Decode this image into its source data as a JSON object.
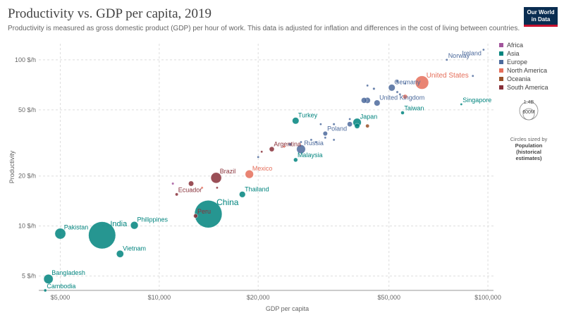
{
  "header": {
    "title": "Productivity vs. GDP per capita, 2019",
    "subtitle": "Productivity is measured as gross domestic product (GDP) per hour of work. This data is adjusted for inflation and differences in the cost of living between countries.",
    "logo_line1": "Our World",
    "logo_line2": "in Data"
  },
  "legend": {
    "items": [
      {
        "label": "Africa",
        "color": "#a2559c"
      },
      {
        "label": "Asia",
        "color": "#00847e"
      },
      {
        "label": "Europe",
        "color": "#4c6a9c"
      },
      {
        "label": "North America",
        "color": "#e56e5a"
      },
      {
        "label": "Oceania",
        "color": "#9a5129"
      },
      {
        "label": "South America",
        "color": "#883039"
      }
    ],
    "size_label_top": "1.4B",
    "size_label_bottom": "600M",
    "size_note": "Circles sized by",
    "size_var": "Population (historical estimates)"
  },
  "chart_data": {
    "type": "scatter",
    "title": "Productivity vs. GDP per capita, 2019",
    "xlabel": "GDP per capita",
    "ylabel": "Productivity",
    "x_scale": "log",
    "y_scale": "log",
    "xlim": [
      4300,
      104000
    ],
    "ylim": [
      4.1,
      125
    ],
    "x_ticks": [
      {
        "value": 5000,
        "label": "$5,000"
      },
      {
        "value": 10000,
        "label": "$10,000"
      },
      {
        "value": 20000,
        "label": "$20,000"
      },
      {
        "value": 50000,
        "label": "$50,000"
      },
      {
        "value": 100000,
        "label": "$100,000"
      }
    ],
    "y_ticks": [
      {
        "value": 5,
        "label": "5 $/h"
      },
      {
        "value": 10,
        "label": "10 $/h"
      },
      {
        "value": 20,
        "label": "20 $/h"
      },
      {
        "value": 50,
        "label": "50 $/h"
      },
      {
        "value": 100,
        "label": "100 $/h"
      }
    ],
    "grid": true,
    "points": [
      {
        "label": "Ireland",
        "x": 97000,
        "y": 115,
        "population": 4.9,
        "continent": "Europe"
      },
      {
        "label": "Norway",
        "x": 75000,
        "y": 100,
        "population": 5.3,
        "continent": "Europe"
      },
      {
        "label": "United States",
        "x": 63000,
        "y": 73,
        "population": 330,
        "continent": "North America"
      },
      {
        "label": "Germany",
        "x": 51000,
        "y": 68,
        "population": 83,
        "continent": "Europe"
      },
      {
        "label": "United Kingdom",
        "x": 46000,
        "y": 55,
        "population": 67,
        "continent": "Europe"
      },
      {
        "label": "Singapore",
        "x": 83000,
        "y": 54,
        "population": 5.7,
        "continent": "Asia"
      },
      {
        "label": "Taiwan",
        "x": 55000,
        "y": 48,
        "population": 23,
        "continent": "Asia"
      },
      {
        "label": "Japan",
        "x": 40000,
        "y": 42,
        "population": 126,
        "continent": "Asia"
      },
      {
        "label": "Turkey",
        "x": 26000,
        "y": 43,
        "population": 83,
        "continent": "Asia"
      },
      {
        "label": "Poland",
        "x": 32000,
        "y": 36,
        "population": 38,
        "continent": "Europe"
      },
      {
        "label": "Russia",
        "x": 27000,
        "y": 29,
        "population": 144,
        "continent": "Europe"
      },
      {
        "label": "Argentina",
        "x": 22000,
        "y": 29,
        "population": 45,
        "continent": "South America"
      },
      {
        "label": "Malaysia",
        "x": 26000,
        "y": 25,
        "population": 32,
        "continent": "Asia"
      },
      {
        "label": "Mexico",
        "x": 18800,
        "y": 20.5,
        "population": 127,
        "continent": "North America"
      },
      {
        "label": "Brazil",
        "x": 14900,
        "y": 19.5,
        "population": 211,
        "continent": "South America"
      },
      {
        "label": "Ecuador",
        "x": 11300,
        "y": 15.5,
        "population": 17,
        "continent": "South America"
      },
      {
        "label": "Thailand",
        "x": 17900,
        "y": 15.5,
        "population": 70,
        "continent": "Asia"
      },
      {
        "label": "China",
        "x": 14100,
        "y": 11.8,
        "population": 1400,
        "continent": "Asia"
      },
      {
        "label": "Peru",
        "x": 12900,
        "y": 11.5,
        "population": 32,
        "continent": "South America"
      },
      {
        "label": "Philippines",
        "x": 8400,
        "y": 10.1,
        "population": 108,
        "continent": "Asia"
      },
      {
        "label": "India",
        "x": 6700,
        "y": 8.8,
        "population": 1366,
        "continent": "Asia"
      },
      {
        "label": "Pakistan",
        "x": 5000,
        "y": 9.0,
        "population": 217,
        "continent": "Asia"
      },
      {
        "label": "Vietnam",
        "x": 7600,
        "y": 6.8,
        "population": 96,
        "continent": "Asia"
      },
      {
        "label": "Bangladesh",
        "x": 4600,
        "y": 4.8,
        "population": 163,
        "continent": "Asia"
      },
      {
        "label": "Cambodia",
        "x": 4500,
        "y": 4.1,
        "population": 16,
        "continent": "Asia"
      },
      {
        "x": 90000,
        "y": 80,
        "population": 0.6,
        "continent": "Europe"
      },
      {
        "x": 53000,
        "y": 74,
        "population": 17,
        "continent": "Europe"
      },
      {
        "x": 56000,
        "y": 72,
        "population": 5.8,
        "continent": "Europe"
      },
      {
        "x": 43000,
        "y": 70,
        "population": 8.9,
        "continent": "Europe"
      },
      {
        "x": 45000,
        "y": 67,
        "population": 11.5,
        "continent": "Europe"
      },
      {
        "x": 53000,
        "y": 64,
        "population": 10.3,
        "continent": "Europe"
      },
      {
        "x": 54000,
        "y": 62,
        "population": 8.6,
        "continent": "Europe"
      },
      {
        "x": 56000,
        "y": 60,
        "population": 38,
        "continent": "North America"
      },
      {
        "x": 43000,
        "y": 57,
        "population": 65,
        "continent": "Europe"
      },
      {
        "x": 42000,
        "y": 57,
        "population": 60,
        "continent": "Europe"
      },
      {
        "x": 38000,
        "y": 44,
        "population": 5.5,
        "continent": "Europe"
      },
      {
        "x": 38000,
        "y": 41,
        "population": 47,
        "continent": "Europe"
      },
      {
        "x": 31000,
        "y": 41,
        "population": 2.1,
        "continent": "Europe"
      },
      {
        "x": 34000,
        "y": 41,
        "population": 10.7,
        "continent": "Europe"
      },
      {
        "x": 40000,
        "y": 40,
        "population": 51,
        "continent": "Asia"
      },
      {
        "x": 43000,
        "y": 40,
        "population": 25,
        "continent": "Oceania"
      },
      {
        "x": 32000,
        "y": 34,
        "population": 1.3,
        "continent": "Europe"
      },
      {
        "x": 34000,
        "y": 33,
        "population": 2.8,
        "continent": "Europe"
      },
      {
        "x": 29000,
        "y": 33,
        "population": 9.8,
        "continent": "Europe"
      },
      {
        "x": 30000,
        "y": 32,
        "population": 5.5,
        "continent": "Europe"
      },
      {
        "x": 25000,
        "y": 31,
        "population": 19,
        "continent": "Europe"
      },
      {
        "x": 24000,
        "y": 30,
        "population": 1.3,
        "continent": "North America"
      },
      {
        "x": 27000,
        "y": 32,
        "population": 7.0,
        "continent": "Europe"
      },
      {
        "x": 20500,
        "y": 28,
        "population": 3.5,
        "continent": "South America"
      },
      {
        "x": 20000,
        "y": 26,
        "population": 4.0,
        "continent": "Europe"
      },
      {
        "x": 15000,
        "y": 17,
        "population": 6.2,
        "continent": "South America"
      },
      {
        "x": 11000,
        "y": 18,
        "population": 11,
        "continent": "Africa"
      },
      {
        "x": 12500,
        "y": 18,
        "population": 50,
        "continent": "South America"
      },
      {
        "x": 13500,
        "y": 17,
        "population": 4.3,
        "continent": "North America"
      }
    ]
  }
}
